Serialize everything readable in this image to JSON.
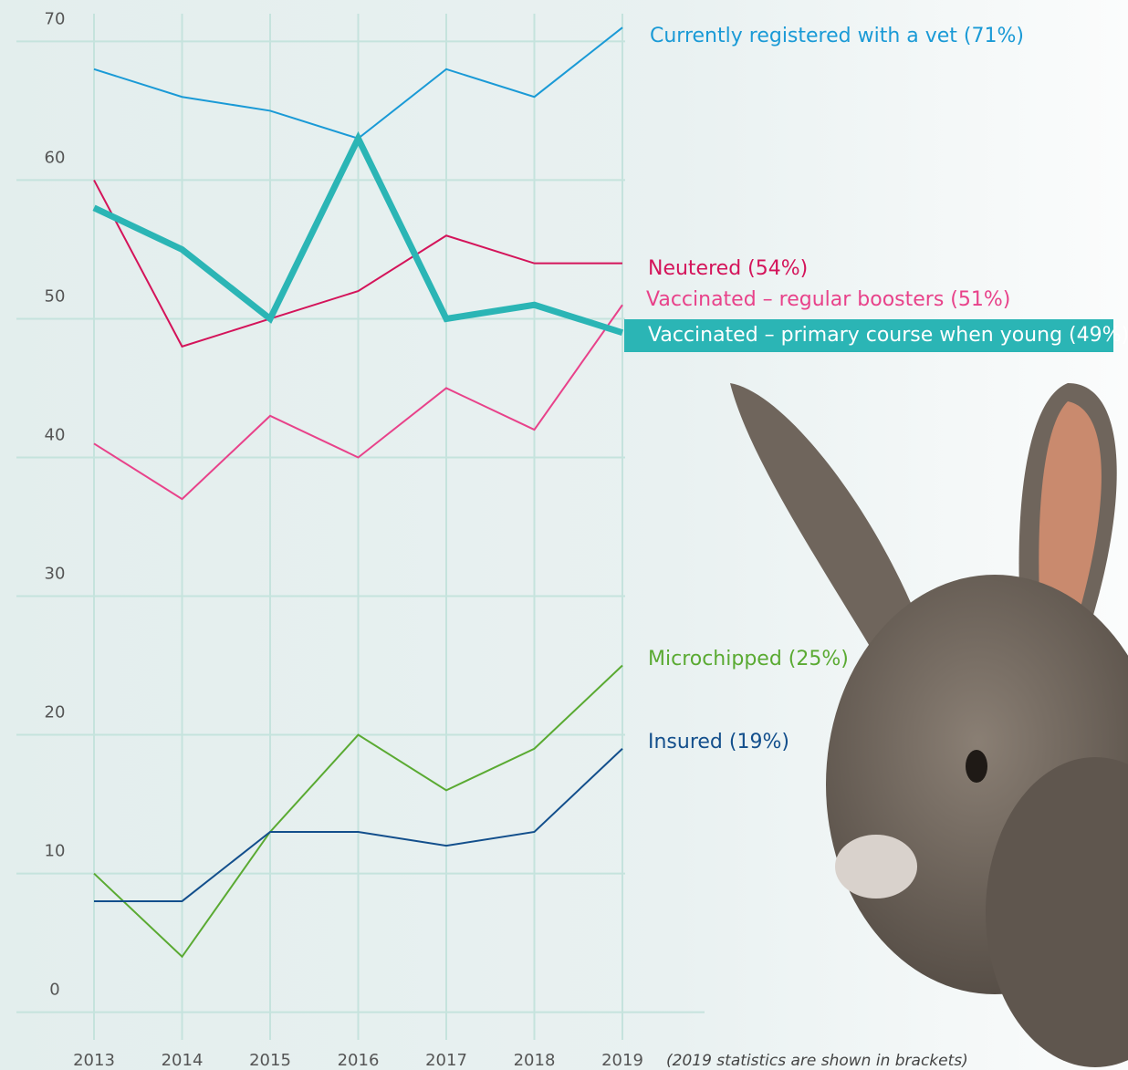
{
  "chart_data": {
    "type": "line",
    "categories": [
      "2013",
      "2014",
      "2015",
      "2016",
      "2017",
      "2018",
      "2019"
    ],
    "series": [
      {
        "name": "Currently registered with a vet (71%)",
        "color": "#1a9ad6",
        "values": [
          68,
          66,
          65,
          63,
          68,
          66,
          71
        ]
      },
      {
        "name": "Neutered (54%)",
        "color": "#d4145a",
        "values": [
          60,
          48,
          50,
          52,
          56,
          54,
          54
        ]
      },
      {
        "name": "Vaccinated – regular boosters (51%)",
        "color": "#e8428a",
        "values": [
          41,
          37,
          43,
          40,
          45,
          42,
          51
        ]
      },
      {
        "name": "Vaccinated – primary course when young (49%)",
        "color": "#2bb5b5",
        "values": [
          58,
          55,
          50,
          63,
          50,
          51,
          49
        ]
      },
      {
        "name": "Microchipped (25%)",
        "color": "#5aaa32",
        "values": [
          10,
          4,
          13,
          20,
          16,
          19,
          25
        ]
      },
      {
        "name": "Insured (19%)",
        "color": "#134f8c",
        "values": [
          8,
          8,
          13,
          13,
          12,
          13,
          19
        ]
      }
    ],
    "ylim": [
      -2,
      72
    ],
    "yticks": [
      0,
      10,
      20,
      30,
      40,
      50,
      60,
      70
    ],
    "grid": true,
    "note": "(2019 statistics are shown in brackets)"
  }
}
